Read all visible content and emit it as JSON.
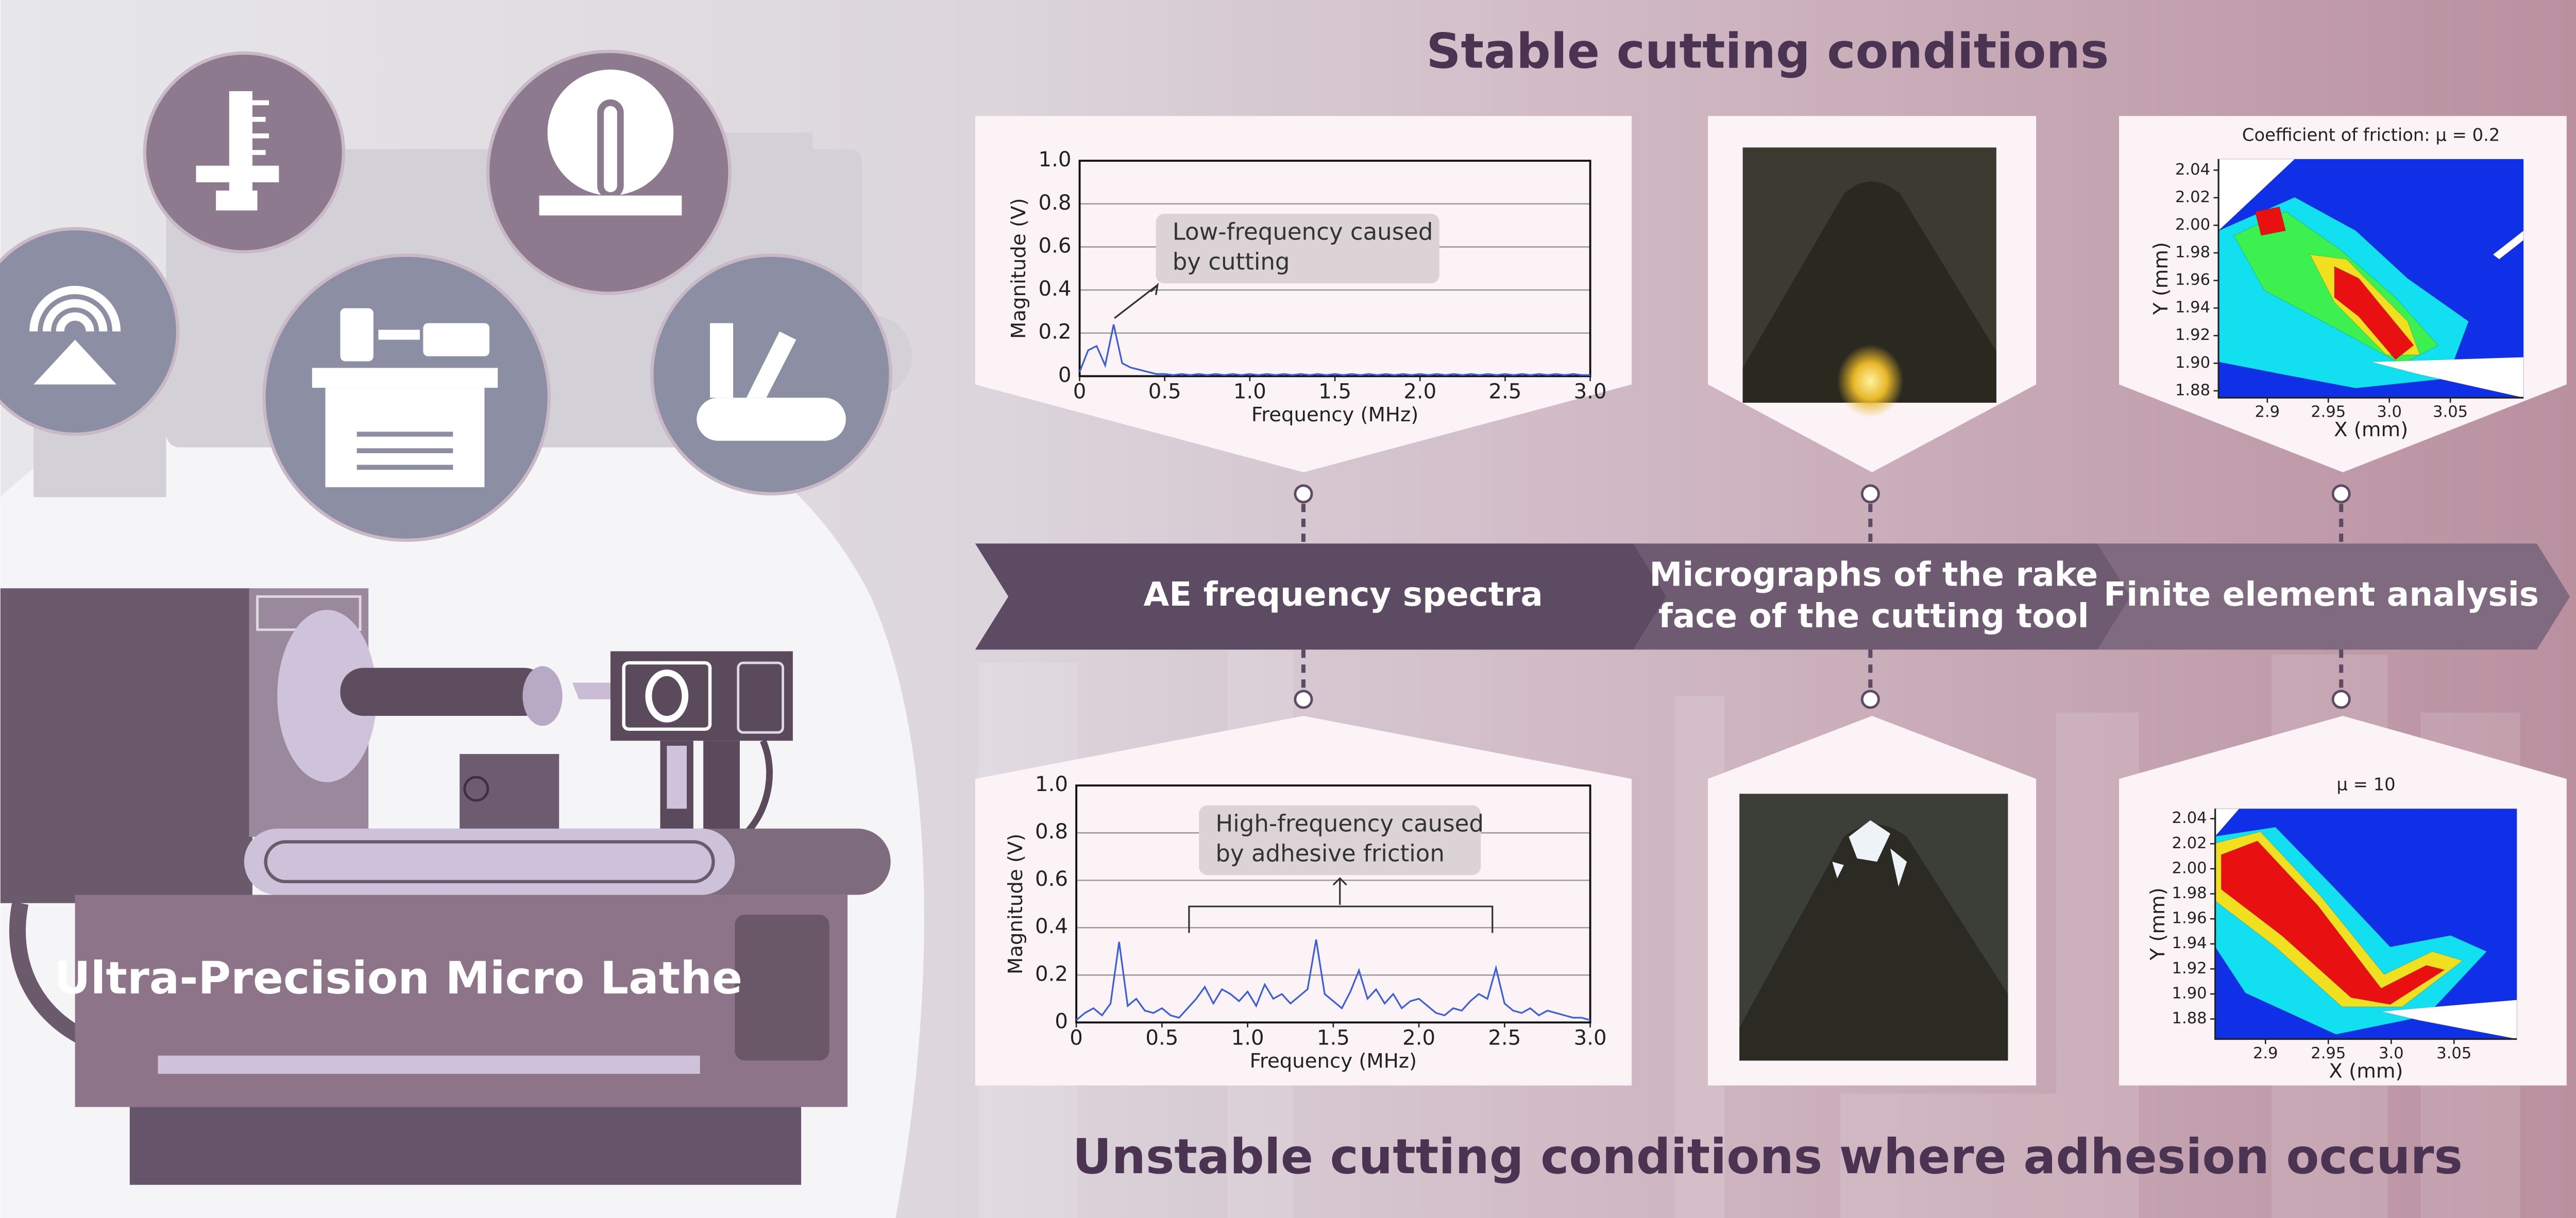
{
  "header": {
    "title": "Stable cutting conditions"
  },
  "footer": {
    "title": "Unstable cutting conditions where adhesion occurs"
  },
  "machine": {
    "label": "Ultra-Precision Micro Lathe"
  },
  "stages": [
    [
      "AE frequency spectra"
    ],
    [
      "Micrographs of the rake",
      "face of the cutting tool"
    ],
    [
      "Finite element analysis"
    ]
  ],
  "chart_data": [
    {
      "type": "line",
      "annotation": [
        "Low-frequency caused",
        "by cutting"
      ],
      "x_label": "Frequency (MHz)",
      "y_label": "Magnitude (V)",
      "color": "#3a5fd8",
      "grid": true,
      "xlim": [
        0,
        3
      ],
      "xticks": [
        0,
        0.5,
        {
          "value": 1,
          "label": "1.0"
        },
        1.5,
        {
          "value": 2,
          "label": "2.0"
        },
        2.5,
        {
          "value": 3,
          "label": "3.0"
        }
      ],
      "ylim": [
        0,
        1
      ],
      "yticks": [
        0,
        0.2,
        0.4,
        0.6,
        0.8,
        {
          "value": 1,
          "label": "1.0"
        }
      ],
      "x": [
        0,
        0.05,
        0.1,
        0.15,
        0.2,
        0.25,
        0.3,
        0.35,
        0.4,
        0.45,
        0.5,
        0.55,
        0.6,
        0.65,
        0.7,
        0.75,
        0.8,
        0.85,
        0.9,
        0.95,
        1,
        1.05,
        1.1,
        1.15,
        1.2,
        1.25,
        1.3,
        1.35,
        1.4,
        1.45,
        1.5,
        1.55,
        1.6,
        1.65,
        1.7,
        1.75,
        1.8,
        1.85,
        1.9,
        1.95,
        2,
        2.05,
        2.1,
        2.15,
        2.2,
        2.25,
        2.3,
        2.35,
        2.4,
        2.45,
        2.5,
        2.55,
        2.6,
        2.65,
        2.7,
        2.75,
        2.8,
        2.85,
        2.9,
        2.95,
        3
      ],
      "values": [
        0.02,
        0.12,
        0.14,
        0.05,
        0.24,
        0.06,
        0.04,
        0.03,
        0.02,
        0.01,
        0.01,
        0.005,
        0.01,
        0.005,
        0.01,
        0.005,
        0.01,
        0.005,
        0.01,
        0.005,
        0.01,
        0.005,
        0.01,
        0.005,
        0.01,
        0.005,
        0.01,
        0.005,
        0.01,
        0.005,
        0.01,
        0.005,
        0.01,
        0.005,
        0.01,
        0.005,
        0.01,
        0.005,
        0.01,
        0.005,
        0.01,
        0.005,
        0.01,
        0.005,
        0.01,
        0.005,
        0.01,
        0.005,
        0.01,
        0.005,
        0.01,
        0.005,
        0.01,
        0.005,
        0.01,
        0.005,
        0.01,
        0.005,
        0.01,
        0.005,
        0.005
      ]
    },
    {
      "type": "line",
      "annotation": [
        "High-frequency caused",
        "by adhesive friction"
      ],
      "x_label": "Frequency (MHz)",
      "y_label": "Magnitude (V)",
      "color": "#3a5fd8",
      "grid": true,
      "xlim": [
        0,
        3
      ],
      "xticks": [
        0,
        0.5,
        {
          "value": 1,
          "label": "1.0"
        },
        1.5,
        {
          "value": 2,
          "label": "2.0"
        },
        2.5,
        {
          "value": 3,
          "label": "3.0"
        }
      ],
      "ylim": [
        0,
        1
      ],
      "yticks": [
        0,
        0.2,
        0.4,
        0.6,
        0.8,
        {
          "value": 1,
          "label": "1.0"
        }
      ],
      "x": [
        0,
        0.05,
        0.1,
        0.15,
        0.2,
        0.25,
        0.3,
        0.35,
        0.4,
        0.45,
        0.5,
        0.55,
        0.6,
        0.65,
        0.7,
        0.75,
        0.8,
        0.85,
        0.9,
        0.95,
        1,
        1.05,
        1.1,
        1.15,
        1.2,
        1.25,
        1.3,
        1.35,
        1.4,
        1.45,
        1.5,
        1.55,
        1.6,
        1.65,
        1.7,
        1.75,
        1.8,
        1.85,
        1.9,
        1.95,
        2,
        2.05,
        2.1,
        2.15,
        2.2,
        2.25,
        2.3,
        2.35,
        2.4,
        2.45,
        2.5,
        2.55,
        2.6,
        2.65,
        2.7,
        2.75,
        2.8,
        2.85,
        2.9,
        2.95,
        3
      ],
      "values": [
        0.01,
        0.04,
        0.06,
        0.03,
        0.08,
        0.34,
        0.07,
        0.1,
        0.05,
        0.04,
        0.06,
        0.03,
        0.02,
        0.06,
        0.1,
        0.15,
        0.08,
        0.14,
        0.12,
        0.09,
        0.13,
        0.07,
        0.16,
        0.1,
        0.12,
        0.08,
        0.11,
        0.14,
        0.35,
        0.12,
        0.09,
        0.06,
        0.13,
        0.22,
        0.1,
        0.14,
        0.08,
        0.12,
        0.06,
        0.09,
        0.1,
        0.07,
        0.04,
        0.03,
        0.06,
        0.05,
        0.09,
        0.12,
        0.1,
        0.23,
        0.08,
        0.05,
        0.04,
        0.06,
        0.03,
        0.05,
        0.04,
        0.03,
        0.02,
        0.02,
        0.01
      ]
    },
    {
      "type": "contour",
      "title": "Coefficient of friction: μ = 0.2",
      "x_label": "X (mm)",
      "y_label": "Y (mm)",
      "xlim": [
        2.86,
        3.11
      ],
      "xticks": [
        2.9,
        2.95,
        {
          "value": 3,
          "label": "3.0"
        },
        3.05
      ],
      "ylim": [
        1.875,
        2.048
      ],
      "yticks": [
        1.88,
        {
          "value": 1.9,
          "label": "1.90"
        },
        1.92,
        1.94,
        1.96,
        1.98,
        {
          "value": 2,
          "label": "2.00"
        },
        2.02,
        2.04
      ]
    },
    {
      "type": "contour",
      "title": "μ = 10",
      "x_label": "X (mm)",
      "y_label": "Y (mm)",
      "xlim": [
        2.86,
        3.1
      ],
      "xticks": [
        2.9,
        2.95,
        {
          "value": 3,
          "label": "3.0"
        },
        3.05
      ],
      "ylim": [
        1.864,
        2.048
      ],
      "yticks": [
        1.88,
        {
          "value": 1.9,
          "label": "1.90"
        },
        1.92,
        1.94,
        1.96,
        1.98,
        {
          "value": 2,
          "label": "2.00"
        },
        2.02,
        2.04
      ]
    }
  ]
}
